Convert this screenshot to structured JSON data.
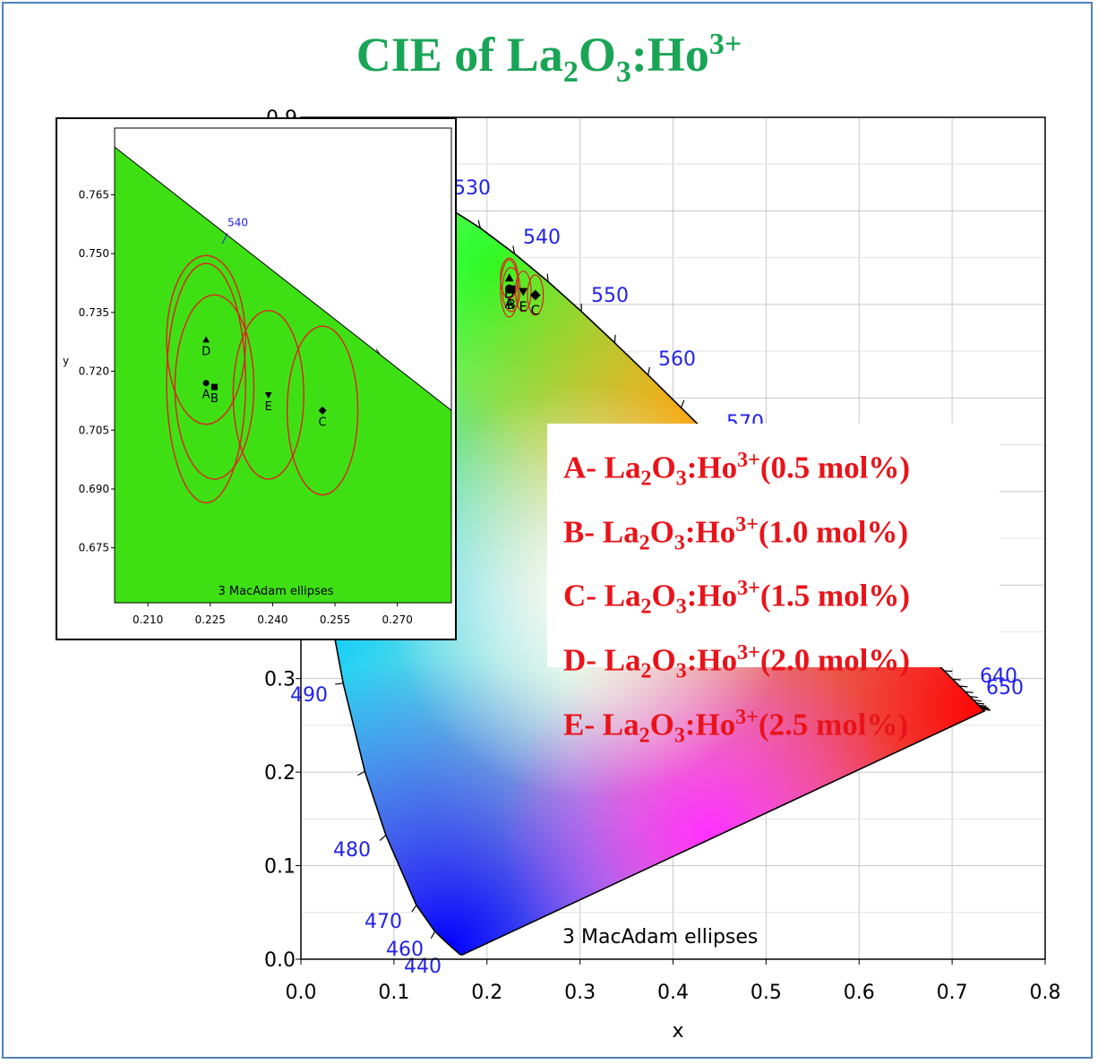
{
  "title": {
    "base": "CIE of La",
    "s1": "2",
    "mid": "O",
    "s2": "3",
    "tail": ":Ho",
    "sup": "3+"
  },
  "legend": [
    {
      "letter": "A-",
      "base": " La",
      "s1": "2",
      "mid": "O",
      "s2": "3",
      "tail": ":Ho",
      "sup": "3+",
      "conc": "(0.5 mol%)"
    },
    {
      "letter": "B-",
      "base": " La",
      "s1": "2",
      "mid": "O",
      "s2": "3",
      "tail": ":Ho",
      "sup": "3+",
      "conc": "(1.0 mol%)"
    },
    {
      "letter": "C-",
      "base": " La",
      "s1": "2",
      "mid": "O",
      "s2": "3",
      "tail": ":Ho",
      "sup": "3+",
      "conc": "(1.5 mol%)"
    },
    {
      "letter": "D-",
      "base": " La",
      "s1": "2",
      "mid": "O",
      "s2": "3",
      "tail": ":Ho",
      "sup": "3+",
      "conc": "(2.0 mol%)"
    },
    {
      "letter": "E-",
      "base": " La",
      "s1": "2",
      "mid": "O",
      "s2": "3",
      "tail": ":Ho",
      "sup": "3+",
      "conc": "(2.5 mol%)"
    }
  ],
  "colors": {
    "title": "#1aa556",
    "legend_text": "#e8141a",
    "wavelength_label": "#2323e6",
    "ellipse": "#e02020",
    "inset_fill": "#3ee014",
    "frame": "#4f81bd"
  },
  "chart_data": [
    {
      "type": "scatter",
      "subtype": "CIE 1931 chromaticity diagram",
      "xlabel": "x",
      "ylabel": "",
      "xlim": [
        0.0,
        0.8
      ],
      "ylim": [
        0.0,
        0.9
      ],
      "xticks": [
        "0.0",
        "0.1",
        "0.2",
        "0.3",
        "0.4",
        "0.5",
        "0.6",
        "0.7",
        "0.8"
      ],
      "yticks": [
        "0.0",
        "0.1",
        "0.2",
        "0.3"
      ],
      "top_tick_partial": "0.9",
      "grid": true,
      "annotation": "3  MacAdam ellipses",
      "wavelength_labels": [
        "440",
        "460",
        "470",
        "480",
        "490",
        "530",
        "540",
        "550",
        "560",
        "570",
        "640",
        "650"
      ],
      "points": [
        {
          "label": "A",
          "x": 0.224,
          "y": 0.717,
          "marker": "circle"
        },
        {
          "label": "B",
          "x": 0.226,
          "y": 0.716,
          "marker": "square"
        },
        {
          "label": "C",
          "x": 0.252,
          "y": 0.71,
          "marker": "diamond"
        },
        {
          "label": "D",
          "x": 0.224,
          "y": 0.728,
          "marker": "triangle-up"
        },
        {
          "label": "E",
          "x": 0.239,
          "y": 0.714,
          "marker": "triangle-down"
        }
      ]
    },
    {
      "type": "scatter",
      "subtype": "CIE zoom inset",
      "xlabel": "",
      "ylabel": "y",
      "xlim": [
        0.202,
        0.283
      ],
      "ylim": [
        0.661,
        0.782
      ],
      "xticks": [
        "0.210",
        "0.225",
        "0.240",
        "0.255",
        "0.270"
      ],
      "yticks": [
        "0.675",
        "0.690",
        "0.705",
        "0.720",
        "0.735",
        "0.750",
        "0.765"
      ],
      "grid": false,
      "annotation": "3  MacAdam ellipses",
      "wavelength_labels": [
        "540"
      ],
      "points": [
        {
          "label": "A",
          "x": 0.224,
          "y": 0.717,
          "marker": "circle",
          "ellipse_rx": 0.0095,
          "ellipse_ry": 0.0305
        },
        {
          "label": "B",
          "x": 0.226,
          "y": 0.716,
          "marker": "square",
          "ellipse_rx": 0.0095,
          "ellipse_ry": 0.0235
        },
        {
          "label": "C",
          "x": 0.252,
          "y": 0.71,
          "marker": "diamond",
          "ellipse_rx": 0.0085,
          "ellipse_ry": 0.0215
        },
        {
          "label": "D",
          "x": 0.224,
          "y": 0.728,
          "marker": "triangle-up",
          "ellipse_rx": 0.0095,
          "ellipse_ry": 0.0215
        },
        {
          "label": "E",
          "x": 0.239,
          "y": 0.714,
          "marker": "triangle-down",
          "ellipse_rx": 0.0085,
          "ellipse_ry": 0.0215
        }
      ]
    }
  ]
}
